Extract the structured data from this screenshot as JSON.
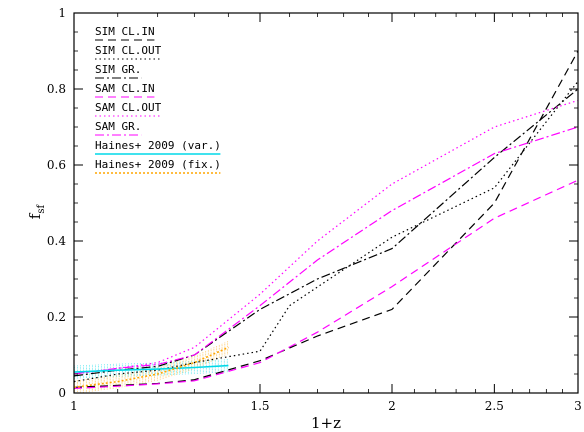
{
  "chart_data": {
    "type": "line",
    "xlabel": "1+z",
    "ylabel": "f",
    "ylabel_sub": "sf",
    "xlim": [
      1,
      3
    ],
    "ylim": [
      0,
      1
    ],
    "x_scale": "log",
    "x_ticks": [
      1,
      1.5,
      2,
      2.5,
      3
    ],
    "x_tick_labels": [
      "1",
      "1.5",
      "2",
      "2.5",
      "3"
    ],
    "y_ticks": [
      0,
      0.2,
      0.4,
      0.6,
      0.8,
      1
    ],
    "y_tick_labels": [
      "0",
      "0.2",
      "0.4",
      "0.6",
      "0.8",
      "1"
    ],
    "legend_position": "top-left",
    "series": [
      {
        "name": "SIM CL.IN",
        "color": "#000000",
        "dash": "8,5",
        "x": [
          1.0,
          1.1,
          1.2,
          1.3,
          1.5,
          1.7,
          2.0,
          2.5,
          3.0
        ],
        "y": [
          0.015,
          0.02,
          0.025,
          0.035,
          0.085,
          0.15,
          0.22,
          0.5,
          0.9
        ]
      },
      {
        "name": "SIM CL.OUT",
        "color": "#000000",
        "dash": "1.5,3",
        "x": [
          1.0,
          1.1,
          1.2,
          1.3,
          1.5,
          1.6,
          2.0,
          2.5,
          3.0
        ],
        "y": [
          0.03,
          0.05,
          0.06,
          0.08,
          0.11,
          0.23,
          0.41,
          0.54,
          0.82
        ]
      },
      {
        "name": "SIM GR.",
        "color": "#000000",
        "dash": "9,3,2,3",
        "x": [
          1.0,
          1.1,
          1.2,
          1.3,
          1.5,
          1.7,
          2.0,
          2.5,
          3.0
        ],
        "y": [
          0.045,
          0.06,
          0.07,
          0.1,
          0.22,
          0.3,
          0.38,
          0.62,
          0.8
        ]
      },
      {
        "name": "SAM CL.IN",
        "color": "#ff00ff",
        "dash": "8,5",
        "x": [
          1.0,
          1.1,
          1.2,
          1.3,
          1.5,
          1.7,
          2.0,
          2.5,
          3.0
        ],
        "y": [
          0.012,
          0.018,
          0.024,
          0.032,
          0.08,
          0.16,
          0.28,
          0.46,
          0.56
        ]
      },
      {
        "name": "SAM CL.OUT",
        "color": "#ff00ff",
        "dash": "1.5,3",
        "x": [
          1.0,
          1.1,
          1.2,
          1.3,
          1.5,
          1.7,
          2.0,
          2.5,
          3.0
        ],
        "y": [
          0.05,
          0.065,
          0.08,
          0.12,
          0.26,
          0.4,
          0.55,
          0.7,
          0.77
        ]
      },
      {
        "name": "SAM GR.",
        "color": "#ff00ff",
        "dash": "9,3,2,3",
        "x": [
          1.0,
          1.1,
          1.2,
          1.3,
          1.5,
          1.7,
          2.0,
          2.5,
          3.0
        ],
        "y": [
          0.05,
          0.065,
          0.075,
          0.1,
          0.23,
          0.35,
          0.48,
          0.63,
          0.7
        ]
      },
      {
        "name": "Haines+ 2009 (var.)",
        "color": "#00d8e8",
        "dash": "",
        "x": [
          1.0,
          1.1,
          1.2,
          1.3,
          1.4
        ],
        "y": [
          0.055,
          0.06,
          0.063,
          0.067,
          0.072
        ]
      },
      {
        "name": "Haines+ 2009 (fix.)",
        "color": "#ffa500",
        "dash": "2,2",
        "x": [
          1.0,
          1.1,
          1.2,
          1.3,
          1.4
        ],
        "y": [
          0.015,
          0.03,
          0.05,
          0.08,
          0.12
        ]
      }
    ]
  }
}
